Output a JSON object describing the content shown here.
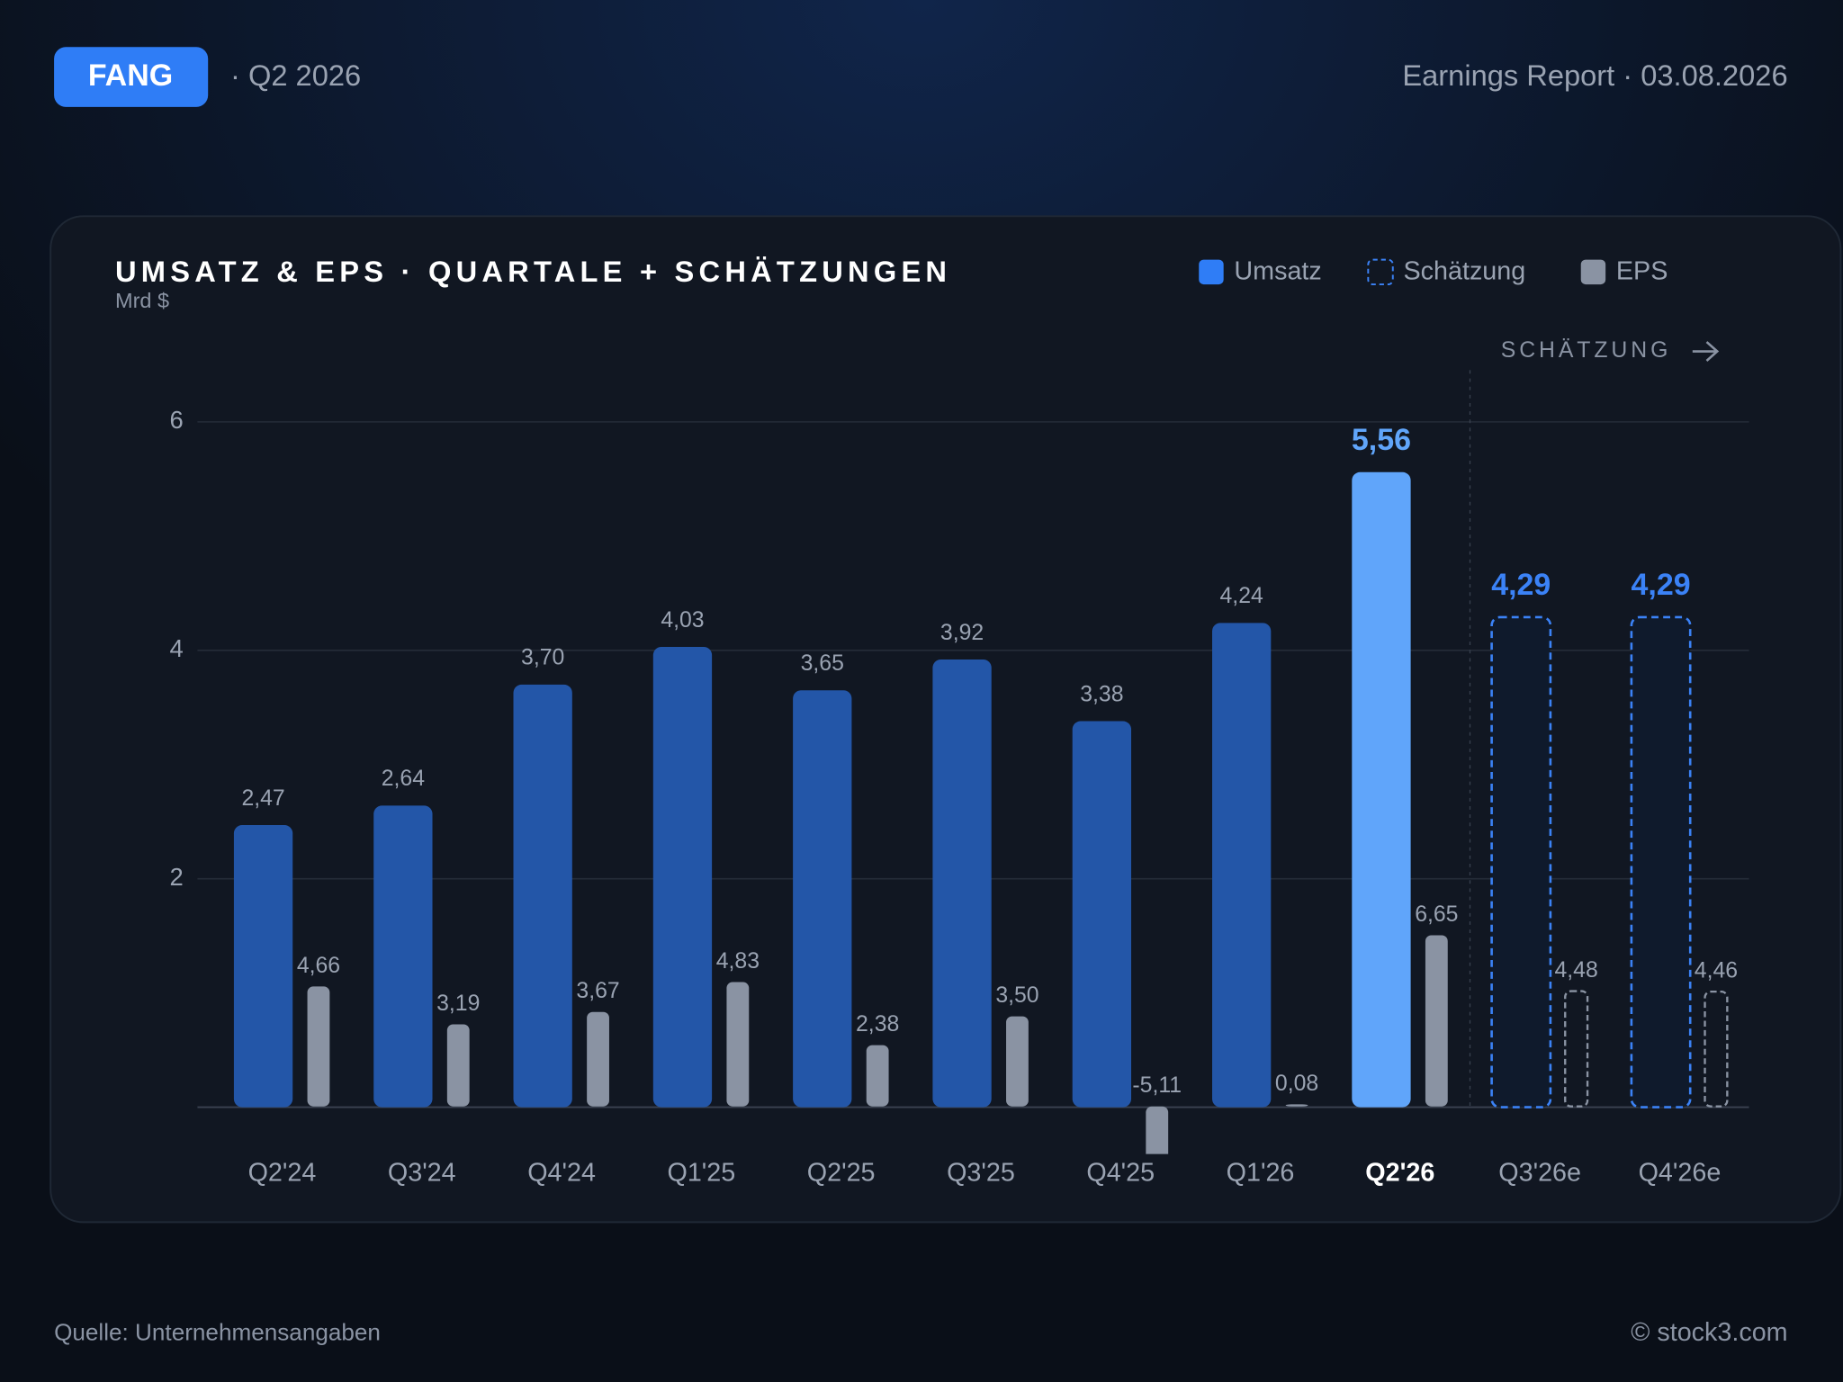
{
  "header": {
    "ticker": "FANG",
    "period": "· Q2 2026",
    "report": "Earnings Report · 03.08.2026"
  },
  "chart_data": {
    "type": "bar",
    "title": "UMSATZ & EPS · QUARTALE + SCHÄTZUNGEN",
    "unit": "Mrd $",
    "categories": [
      "Q2'24",
      "Q3'24",
      "Q4'24",
      "Q1'25",
      "Q2'25",
      "Q3'25",
      "Q4'25",
      "Q1'26",
      "Q2'26",
      "Q3'26e",
      "Q4'26e"
    ],
    "series": [
      {
        "name": "Umsatz",
        "color": "#2356a8",
        "values": [
          2.47,
          2.64,
          3.7,
          4.03,
          3.65,
          3.92,
          3.38,
          4.24,
          5.56,
          4.29,
          4.29
        ],
        "value_labels": [
          "2,47",
          "2,64",
          "3,70",
          "4,03",
          "3,65",
          "3,92",
          "3,38",
          "4,24",
          "5,56",
          "4,29",
          "4,29"
        ]
      },
      {
        "name": "EPS",
        "color": "#8a93a3",
        "axis": "y2",
        "values": [
          4.66,
          3.19,
          3.67,
          4.83,
          2.38,
          3.5,
          -5.11,
          0.08,
          6.65,
          4.48,
          4.46
        ],
        "value_labels": [
          "4,66",
          "3,19",
          "3,67",
          "4,83",
          "2,38",
          "3,50",
          "-5,11",
          "0,08",
          "6,65",
          "4,48",
          "4,46"
        ]
      }
    ],
    "highlight": {
      "index": 8,
      "color": "#60a5fa"
    },
    "estimate": {
      "label": "Schätzung",
      "color": "#3b82f6",
      "start": 9
    },
    "annotation": "SCHÄTZUNG",
    "ylim": [
      -0.41,
      6
    ],
    "yticks": [
      2,
      4,
      6
    ],
    "y2lim": [
      -1.85,
      26.6
    ],
    "grid": true,
    "legend": "top-right"
  },
  "footer": {
    "source": "Quelle: Unternehmensangaben",
    "copyright": "© stock3.com"
  }
}
